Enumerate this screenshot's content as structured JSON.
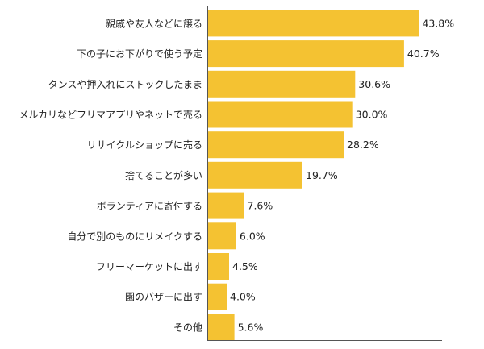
{
  "chart_data": {
    "type": "bar",
    "orientation": "horizontal",
    "categories": [
      "親戚や友人などに譲る",
      "下の子にお下がりで使う予定",
      "タンスや押入れにストックしたまま",
      "メルカリなどフリマアプリやネットで売る",
      "リサイクルショップに売る",
      "捨てることが多い",
      "ボランティアに寄付する",
      "自分で別のものにリメイクする",
      "フリーマーケットに出す",
      "園のバザーに出す",
      "その他"
    ],
    "values": [
      43.8,
      40.7,
      30.6,
      30.0,
      28.2,
      19.7,
      7.6,
      6.0,
      4.5,
      4.0,
      5.6
    ],
    "value_labels": [
      "43.8%",
      "40.7%",
      "30.6%",
      "30.0%",
      "28.2%",
      "19.7%",
      "7.6%",
      "6.0%",
      "4.5%",
      "4.0%",
      "5.6%"
    ],
    "xlim": [
      0,
      46.9
    ],
    "bar_color": "#f4c232",
    "axis_color": "#555555",
    "grid": false,
    "legend": "none"
  }
}
